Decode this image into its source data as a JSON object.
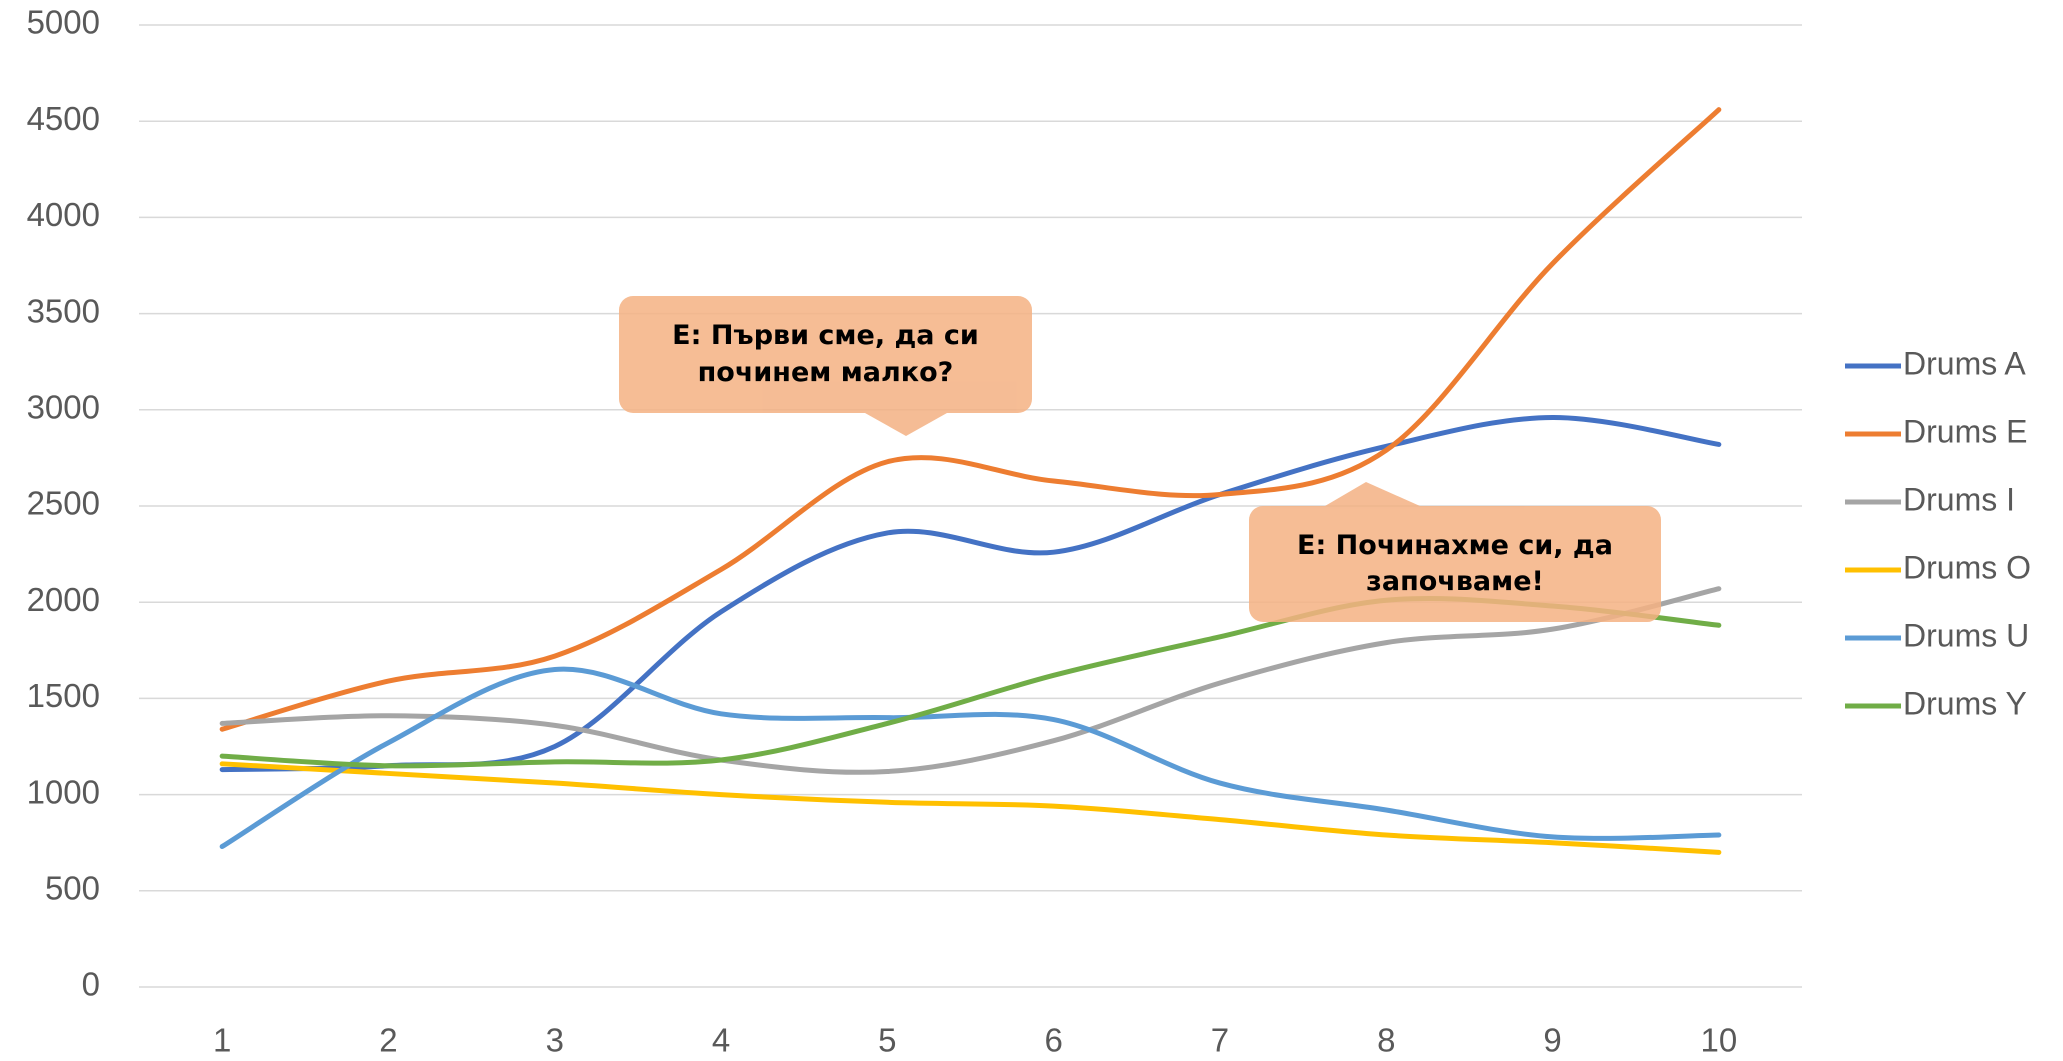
{
  "chart_data": {
    "type": "line",
    "categories": [
      "1",
      "2",
      "3",
      "4",
      "5",
      "6",
      "7",
      "8",
      "9",
      "10"
    ],
    "series": [
      {
        "name": "Drums A",
        "color": "#4472c4",
        "values": [
          1130,
          1150,
          1250,
          1950,
          2360,
          2260,
          2560,
          2810,
          2960,
          2820
        ]
      },
      {
        "name": "Drums E",
        "color": "#ed7d31",
        "values": [
          1340,
          1590,
          1720,
          2170,
          2730,
          2630,
          2560,
          2790,
          3760,
          4560
        ]
      },
      {
        "name": "Drums I",
        "color": "#a5a5a5",
        "values": [
          1370,
          1410,
          1360,
          1180,
          1120,
          1280,
          1580,
          1790,
          1860,
          2070
        ]
      },
      {
        "name": "Drums O",
        "color": "#ffc000",
        "values": [
          1160,
          1110,
          1060,
          1000,
          960,
          940,
          870,
          790,
          750,
          700
        ]
      },
      {
        "name": "Drums U",
        "color": "#5b9bd5",
        "values": [
          730,
          1270,
          1650,
          1420,
          1400,
          1390,
          1060,
          920,
          780,
          790
        ]
      },
      {
        "name": "Drums Y",
        "color": "#70ad47",
        "values": [
          1200,
          1150,
          1170,
          1180,
          1370,
          1620,
          1820,
          2010,
          1980,
          1880
        ]
      }
    ],
    "ylim": [
      0,
      5000
    ],
    "yticks": [
      0,
      500,
      1000,
      1500,
      2000,
      2500,
      3000,
      3500,
      4000,
      4500,
      5000
    ],
    "grid": true,
    "smooth": true,
    "legend": "right",
    "annotations": [
      "Е: Първи сме, да си починем малко?",
      "Е: Починахме си, да започваме!"
    ]
  }
}
